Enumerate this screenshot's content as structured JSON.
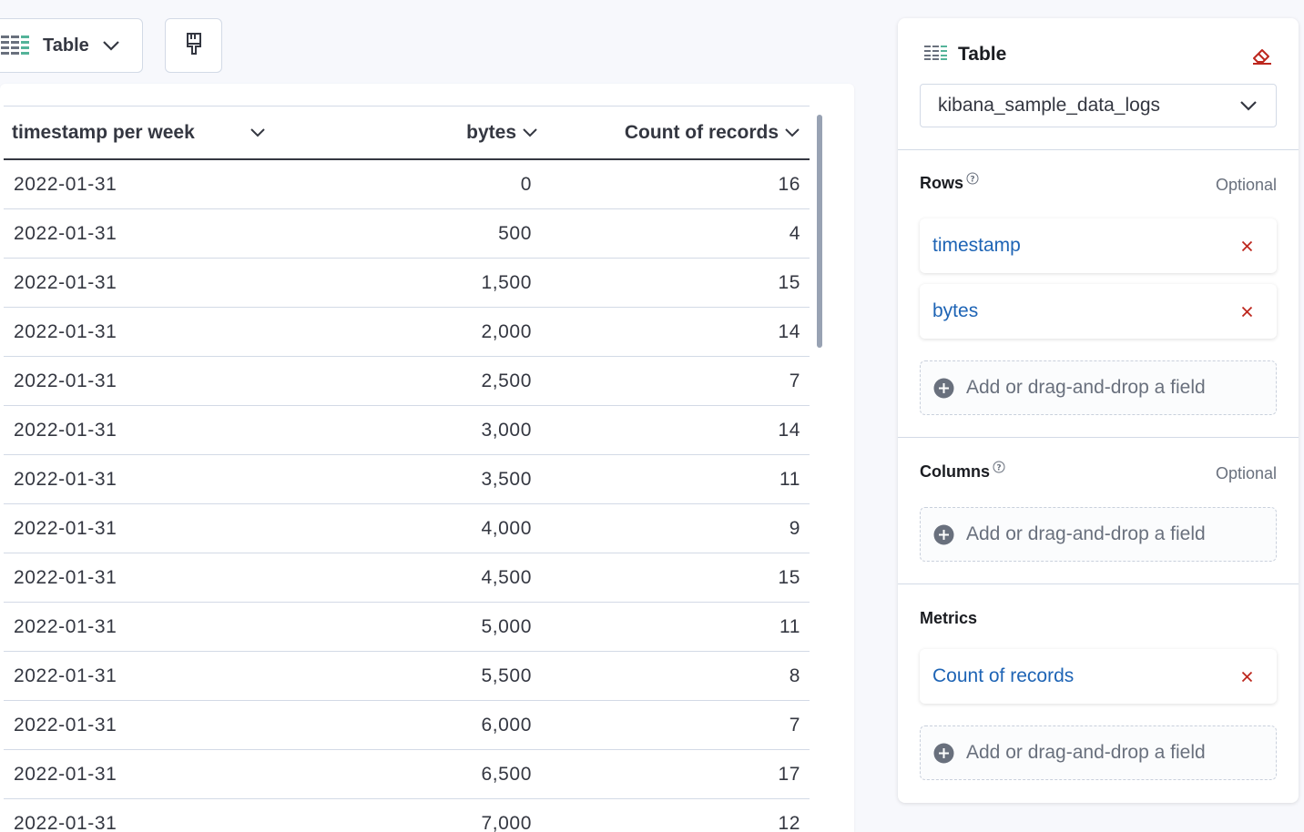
{
  "toolbar": {
    "chart_type_label": "Table",
    "chart_type_icon": "table-icon",
    "style_button_icon": "paintbrush-icon"
  },
  "table": {
    "columns": [
      "timestamp per week",
      "bytes",
      "Count of records"
    ],
    "rows": [
      [
        "2022-01-31",
        "0",
        "16"
      ],
      [
        "2022-01-31",
        "500",
        "4"
      ],
      [
        "2022-01-31",
        "1,500",
        "15"
      ],
      [
        "2022-01-31",
        "2,000",
        "14"
      ],
      [
        "2022-01-31",
        "2,500",
        "7"
      ],
      [
        "2022-01-31",
        "3,000",
        "14"
      ],
      [
        "2022-01-31",
        "3,500",
        "11"
      ],
      [
        "2022-01-31",
        "4,000",
        "9"
      ],
      [
        "2022-01-31",
        "4,500",
        "15"
      ],
      [
        "2022-01-31",
        "5,000",
        "11"
      ],
      [
        "2022-01-31",
        "5,500",
        "8"
      ],
      [
        "2022-01-31",
        "6,000",
        "7"
      ],
      [
        "2022-01-31",
        "6,500",
        "17"
      ],
      [
        "2022-01-31",
        "7,000",
        "12"
      ]
    ]
  },
  "config": {
    "title": "Table",
    "index_pattern": "kibana_sample_data_logs",
    "rows": {
      "label": "Rows",
      "optional": "Optional",
      "fields": [
        "timestamp",
        "bytes"
      ],
      "add_label": "Add or drag-and-drop a field"
    },
    "columns": {
      "label": "Columns",
      "optional": "Optional",
      "add_label": "Add or drag-and-drop a field"
    },
    "metrics": {
      "label": "Metrics",
      "fields": [
        "Count of records"
      ],
      "add_label": "Add or drag-and-drop a field"
    }
  },
  "colors": {
    "link": "#1e64b5",
    "danger": "#bd271e",
    "table_icon_accent": "#54b399"
  }
}
